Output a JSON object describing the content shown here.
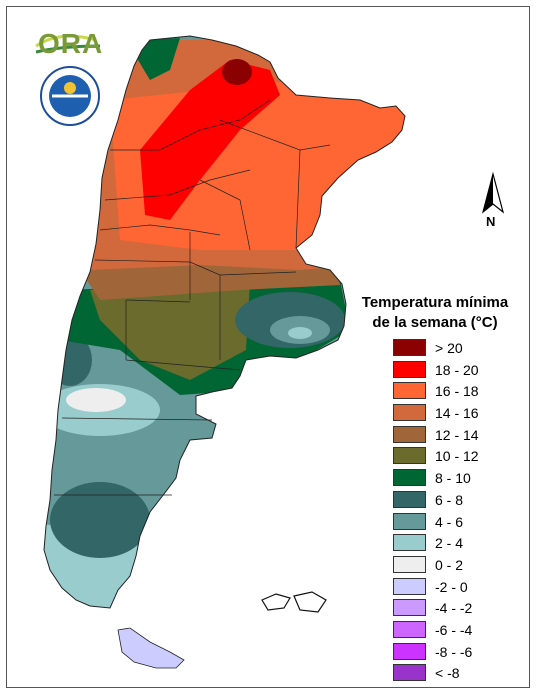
{
  "header": {
    "logo_text": "ORA"
  },
  "compass": {
    "north_label": "N",
    "icon": "north-arrow-icon"
  },
  "legend": {
    "title_line1": "Temperatura mínima",
    "title_line2": "de la semana (°C)",
    "items": [
      {
        "label": "> 20",
        "color": "#8b0000"
      },
      {
        "label": "18 - 20",
        "color": "#ff0000"
      },
      {
        "label": "16 - 18",
        "color": "#ff6633"
      },
      {
        "label": "14 - 16",
        "color": "#d2693c"
      },
      {
        "label": "12 - 14",
        "color": "#a0663a"
      },
      {
        "label": "10 - 12",
        "color": "#6b6b2e"
      },
      {
        "label": "8 - 10",
        "color": "#006633"
      },
      {
        "label": "6 - 8",
        "color": "#336666"
      },
      {
        "label": "4 - 6",
        "color": "#669999"
      },
      {
        "label": "2 - 4",
        "color": "#99cccc"
      },
      {
        "label": "0 - 2",
        "color": "#eeeeee"
      },
      {
        "label": "-2 - 0",
        "color": "#ccccff"
      },
      {
        "label": "-4 - -2",
        "color": "#cc99ff"
      },
      {
        "label": "-6 - -4",
        "color": "#cc66ff"
      },
      {
        "label": "-8 - -6",
        "color": "#cc33ff"
      },
      {
        "label": "< -8",
        "color": "#9933cc"
      }
    ]
  }
}
